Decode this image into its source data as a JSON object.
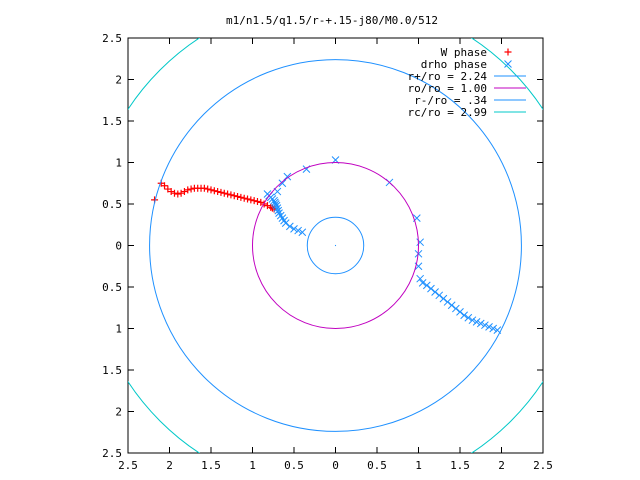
{
  "chart_data": {
    "type": "scatter",
    "title": "m1/n1.5/q1.5/r-+.15-j80/M0.0/512",
    "xlabel": "",
    "ylabel": "",
    "xlim": [
      -2.5,
      2.5
    ],
    "ylim": [
      -2.5,
      2.5
    ],
    "x_ticks": [
      -2.5,
      -2,
      -1.5,
      -1,
      -0.5,
      0,
      0.5,
      1,
      1.5,
      2,
      2.5
    ],
    "y_ticks": [
      2.5,
      2,
      1.5,
      1,
      0.5,
      0,
      -0.5,
      -1,
      -1.5,
      -2,
      -2.5
    ],
    "x_tick_labels": [
      "2.5",
      "2",
      "1.5",
      "1",
      "0.5",
      "0",
      "0.5",
      "1",
      "1.5",
      "2",
      "2.5"
    ],
    "y_tick_labels": [
      "2.5",
      "2",
      "1.5",
      "1",
      "0.5",
      "0",
      "0.5",
      "1",
      "1.5",
      "2",
      "2.5"
    ],
    "grid": false,
    "legend_position": "top-right",
    "series": [
      {
        "name": "W phase",
        "kind": "points",
        "marker": "plus",
        "color": "#ff0000",
        "x": [
          -2.18,
          -2.1,
          -2.06,
          -2.02,
          -1.98,
          -1.94,
          -1.9,
          -1.86,
          -1.82,
          -1.78,
          -1.74,
          -1.7,
          -1.66,
          -1.62,
          -1.58,
          -1.54,
          -1.5,
          -1.46,
          -1.42,
          -1.38,
          -1.34,
          -1.3,
          -1.26,
          -1.22,
          -1.18,
          -1.14,
          -1.1,
          -1.06,
          -1.02,
          -0.98,
          -0.94,
          -0.9,
          -0.86,
          -0.82,
          -0.78,
          -0.76,
          -0.74
        ],
        "y": [
          0.55,
          0.75,
          0.72,
          0.68,
          0.65,
          0.63,
          0.62,
          0.63,
          0.65,
          0.67,
          0.68,
          0.69,
          0.69,
          0.69,
          0.69,
          0.68,
          0.67,
          0.66,
          0.65,
          0.64,
          0.63,
          0.62,
          0.61,
          0.6,
          0.59,
          0.58,
          0.57,
          0.56,
          0.55,
          0.54,
          0.53,
          0.52,
          0.5,
          0.48,
          0.46,
          0.45,
          0.44
        ]
      },
      {
        "name": "drho phase",
        "kind": "points",
        "marker": "cross",
        "color": "#1e90ff",
        "x": [
          -0.4,
          -0.45,
          -0.5,
          -0.55,
          -0.6,
          -0.62,
          -0.64,
          -0.66,
          -0.68,
          -0.69,
          -0.7,
          -0.71,
          -0.72,
          -0.73,
          -0.74,
          -0.76,
          -0.78,
          -0.8,
          -0.82,
          -0.35,
          -0.58,
          -0.64,
          -0.7,
          -0.0,
          0.65,
          0.98,
          1.02,
          1.0,
          1.0,
          1.02,
          1.05,
          1.1,
          1.15,
          1.2,
          1.25,
          1.3,
          1.35,
          1.4,
          1.45,
          1.5,
          1.55,
          1.6,
          1.65,
          1.7,
          1.75,
          1.8,
          1.85,
          1.9,
          1.95
        ],
        "y": [
          0.16,
          0.18,
          0.2,
          0.23,
          0.27,
          0.3,
          0.33,
          0.36,
          0.39,
          0.42,
          0.45,
          0.48,
          0.5,
          0.52,
          0.54,
          0.56,
          0.58,
          0.6,
          0.62,
          0.92,
          0.83,
          0.75,
          0.65,
          1.03,
          0.76,
          0.33,
          0.04,
          -0.1,
          -0.25,
          -0.4,
          -0.45,
          -0.48,
          -0.52,
          -0.56,
          -0.6,
          -0.64,
          -0.68,
          -0.72,
          -0.76,
          -0.8,
          -0.84,
          -0.87,
          -0.9,
          -0.92,
          -0.94,
          -0.96,
          -0.98,
          -1.0,
          -1.02
        ]
      },
      {
        "name": "r+/ro = 2.24",
        "kind": "circle",
        "radius": 2.24,
        "color": "#1e90ff"
      },
      {
        "name": "ro/ro = 1.00",
        "kind": "circle",
        "radius": 1.0,
        "color": "#c000c0"
      },
      {
        "name": "r-/ro = .34",
        "kind": "circle",
        "radius": 0.34,
        "color": "#1e90ff"
      },
      {
        "name": "rc/ro = 2.99",
        "kind": "circle",
        "radius": 2.99,
        "color": "#00c8c8"
      }
    ]
  }
}
